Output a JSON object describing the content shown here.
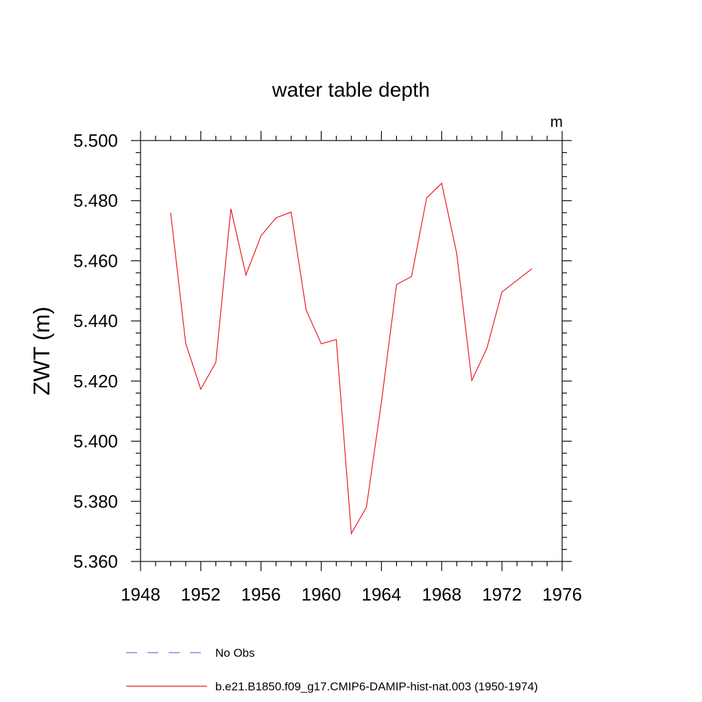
{
  "chart_data": {
    "type": "line",
    "title": "water table depth",
    "units": "m",
    "xlabel": "",
    "ylabel": "ZWT  (m)",
    "xlim": [
      1948,
      1976
    ],
    "ylim": [
      5.36,
      5.5
    ],
    "x_ticks": [
      1948,
      1952,
      1956,
      1960,
      1964,
      1968,
      1972,
      1976
    ],
    "x_tick_labels": [
      "1948",
      "1952",
      "1956",
      "1960",
      "1964",
      "1968",
      "1972",
      "1976"
    ],
    "y_ticks": [
      5.36,
      5.38,
      5.4,
      5.42,
      5.44,
      5.46,
      5.48,
      5.5
    ],
    "y_tick_labels": [
      "5.360",
      "5.380",
      "5.400",
      "5.420",
      "5.440",
      "5.460",
      "5.480",
      "5.500"
    ],
    "grid": false,
    "legend_position": "bottom",
    "series": [
      {
        "name": "No Obs",
        "color": "#6f6fd0",
        "style": "dashed",
        "x": [],
        "values": []
      },
      {
        "name": "b.e21.B1850.f09_g17.CMIP6-DAMIP-hist-nat.003 (1950-1974)",
        "color": "#e8141e",
        "style": "solid",
        "x": [
          1950,
          1951,
          1952,
          1953,
          1954,
          1955,
          1956,
          1957,
          1958,
          1959,
          1960,
          1961,
          1962,
          1963,
          1964,
          1965,
          1966,
          1967,
          1968,
          1969,
          1970,
          1971,
          1972,
          1973,
          1974
        ],
        "values": [
          5.476,
          5.4325,
          5.4173,
          5.4262,
          5.4773,
          5.4553,
          5.4683,
          5.4743,
          5.4762,
          5.4436,
          5.4324,
          5.4338,
          5.3693,
          5.378,
          5.4131,
          5.4521,
          5.4548,
          5.4809,
          5.4858,
          5.4624,
          5.4202,
          5.4309,
          5.4496,
          5.4535,
          5.4574
        ]
      }
    ]
  }
}
